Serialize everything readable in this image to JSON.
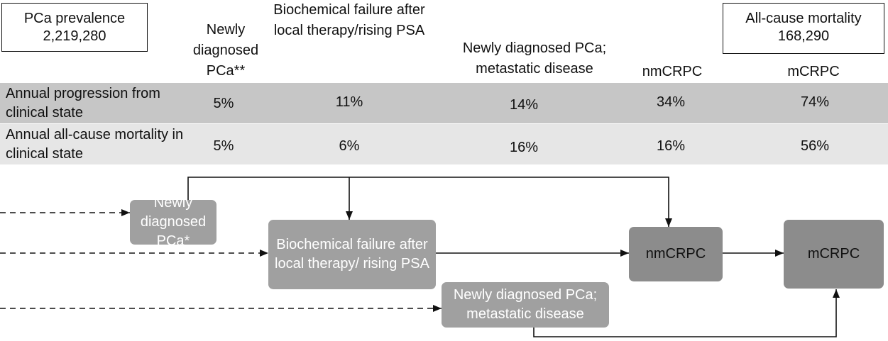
{
  "prevalence": {
    "label": "PCa prevalence",
    "value": "2,219,280"
  },
  "mortality": {
    "label": "All-cause mortality",
    "value": "168,290"
  },
  "headers": [
    "Newly diagnosed PCa**",
    "Biochemical failure after local therapy/rising PSA",
    "Newly diagnosed PCa; metastatic disease",
    "nmCRPC",
    "mCRPC"
  ],
  "rows": [
    {
      "label": "Annual progression from clinical state",
      "values": [
        "5%",
        "11%",
        "14%",
        "34%",
        "74%"
      ]
    },
    {
      "label": "Annual all-cause mortality in clinical state",
      "values": [
        "5%",
        "6%",
        "16%",
        "16%",
        "56%"
      ]
    }
  ],
  "nodes": {
    "newly": "Newly diagnosed PCa*",
    "bcr": "Biochemical failure after local therapy/ rising PSA",
    "meta": "Newly diagnosed PCa; metastatic disease",
    "nmcrpc": "nmCRPC",
    "mcrpc": "mCRPC"
  },
  "colors": {
    "node": "#a0a0a0",
    "node_dark": "#8c8c8c",
    "row1": "#c6c6c6",
    "row2": "#e6e6e6"
  }
}
